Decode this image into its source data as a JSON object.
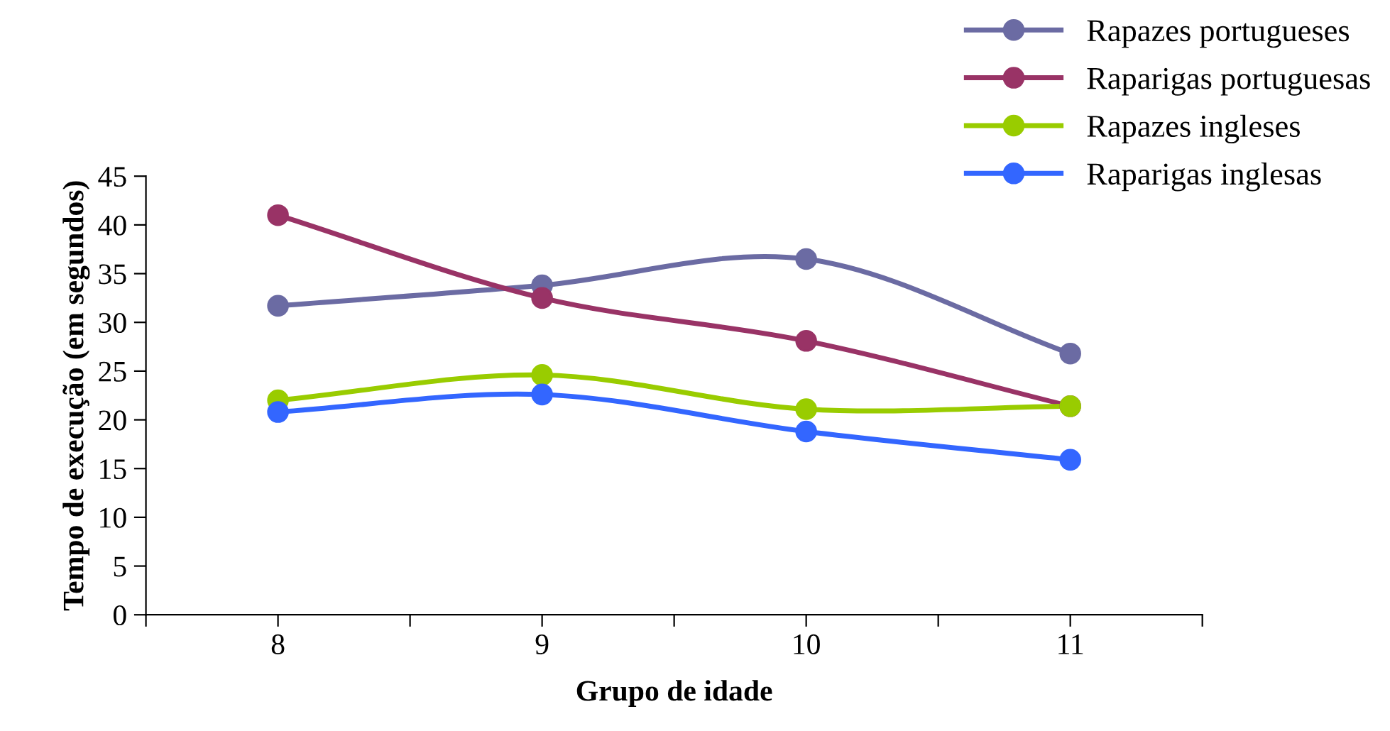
{
  "chart_data": {
    "type": "line",
    "xlabel": "Grupo de idade",
    "ylabel": "Tempo de execução (em segundos)",
    "x": [
      8,
      9,
      10,
      11
    ],
    "xlim": [
      7.5,
      11.5
    ],
    "xticks": [
      {
        "value": 7.5,
        "label": null
      },
      8,
      {
        "value": 8.5,
        "label": null
      },
      9,
      {
        "value": 9.5,
        "label": null
      },
      10,
      {
        "value": 10.5,
        "label": null
      },
      11,
      {
        "value": 11.5,
        "label": null
      }
    ],
    "ylim": [
      0,
      45
    ],
    "yticks": [
      0,
      5,
      10,
      15,
      20,
      25,
      30,
      35,
      40,
      45
    ],
    "grid": false,
    "legend": "top right",
    "marker": "circle",
    "line_style": "solid",
    "series": [
      {
        "name": "Rapazes portugueses",
        "color": "#6b6ba3",
        "values": [
          31.7,
          33.8,
          36.5,
          26.8
        ]
      },
      {
        "name": "Raparigas portuguesas",
        "color": "#993366",
        "values": [
          41,
          32.5,
          28.1,
          21.4
        ]
      },
      {
        "name": "Rapazes ingleses",
        "color": "#99cc00",
        "values": [
          22.0,
          24.6,
          21.1,
          21.4
        ]
      },
      {
        "name": "Raparigas inglesas",
        "color": "#3366ff",
        "values": [
          20.8,
          22.6,
          18.8,
          15.9
        ]
      }
    ]
  }
}
